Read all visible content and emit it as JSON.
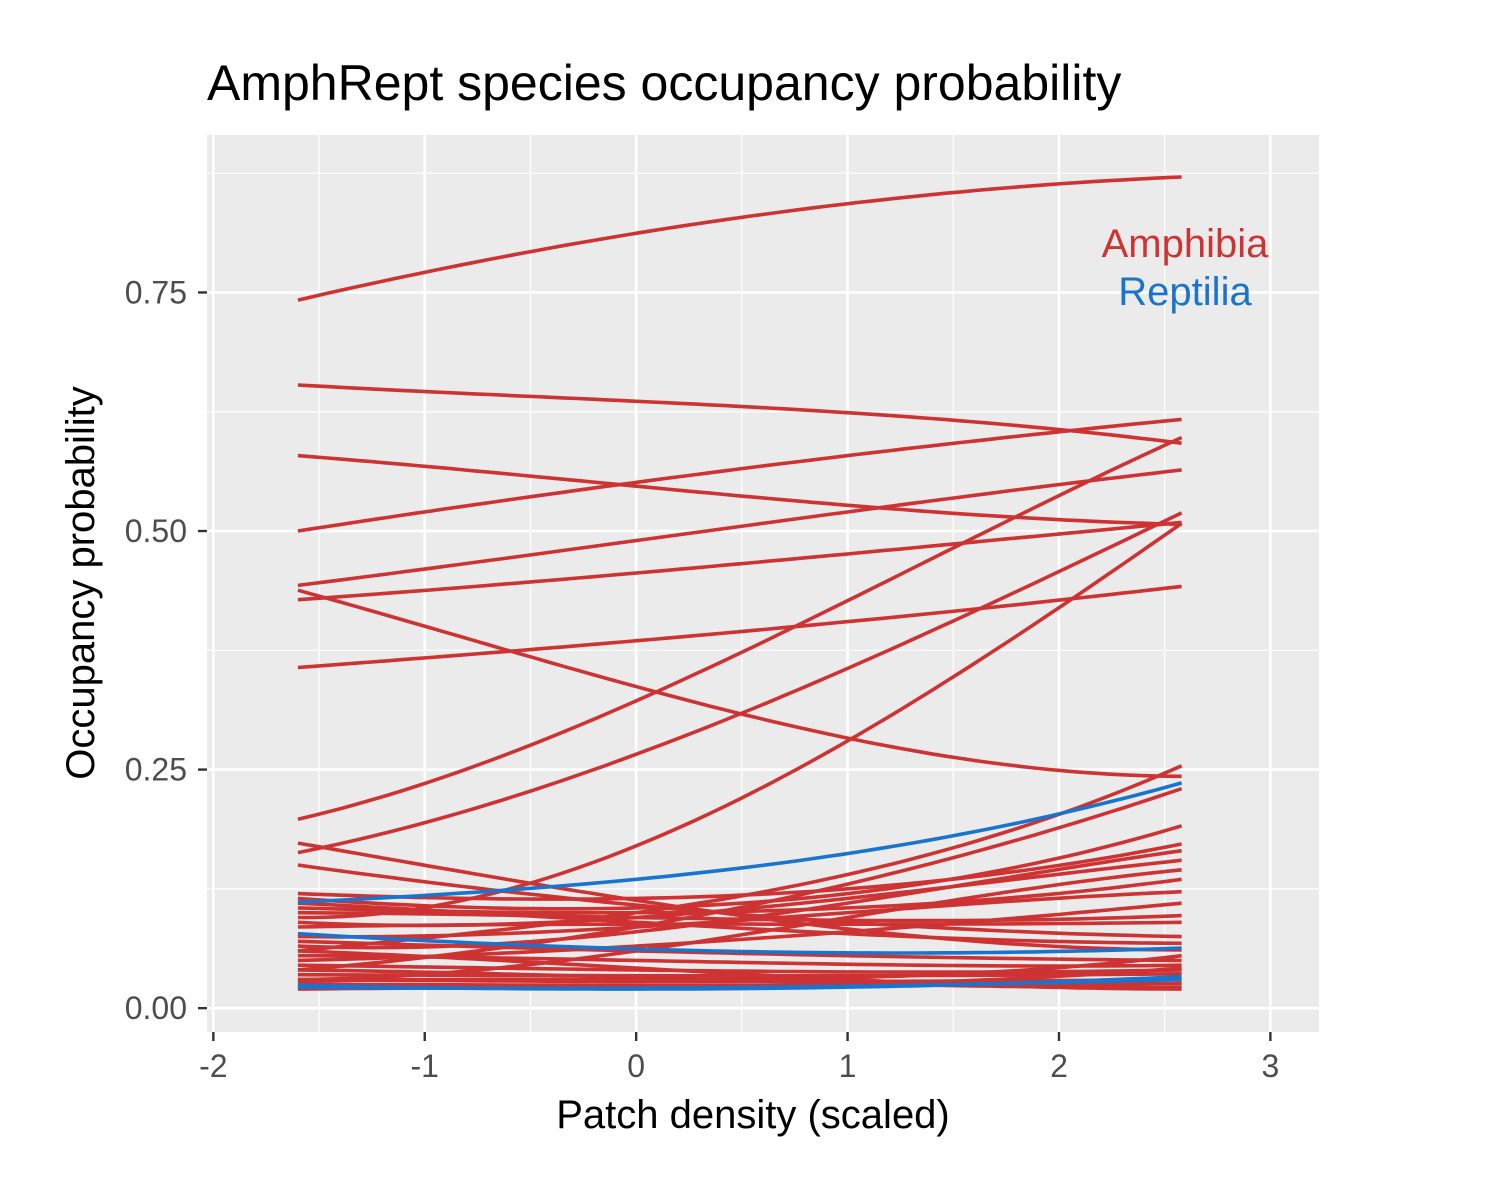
{
  "chart_data": {
    "type": "line",
    "title": "AmphRept species occupancy probability",
    "xlabel": "Patch density (scaled)",
    "ylabel": "Occupancy probability",
    "xlim": [
      -2.03,
      3.23
    ],
    "ylim": [
      -0.025,
      0.915
    ],
    "x_ticks": [
      -2,
      -1,
      0,
      1,
      2,
      3
    ],
    "x_tick_labels": [
      "-2",
      "-1",
      "0",
      "1",
      "2",
      "3"
    ],
    "y_ticks": [
      0,
      0.25,
      0.5,
      0.75
    ],
    "y_tick_labels": [
      "0.00",
      "0.25",
      "0.50",
      "0.75"
    ],
    "x_range": [
      -1.6,
      2.58
    ],
    "grid": true,
    "legend": {
      "placement": "top-right",
      "entries": [
        {
          "label": "Amphibia",
          "color": "#cd3333"
        },
        {
          "label": "Reptilia",
          "color": "#1874cd"
        }
      ]
    },
    "series": [
      {
        "group": "Amphibia",
        "x": [
          -1.6,
          0,
          1,
          2.58
        ],
        "y": [
          0.742,
          0.812,
          0.843,
          0.871
        ]
      },
      {
        "group": "Amphibia",
        "x": [
          -1.6,
          0,
          1,
          2.58
        ],
        "y": [
          0.653,
          0.636,
          0.624,
          0.592
        ]
      },
      {
        "group": "Amphibia",
        "x": [
          -1.6,
          0,
          1,
          2.58
        ],
        "y": [
          0.579,
          0.547,
          0.527,
          0.507
        ]
      },
      {
        "group": "Amphibia",
        "x": [
          -1.6,
          0,
          1,
          2.58
        ],
        "y": [
          0.5,
          0.551,
          0.579,
          0.617
        ]
      },
      {
        "group": "Amphibia",
        "x": [
          -1.6,
          0,
          1,
          2.58
        ],
        "y": [
          0.443,
          0.49,
          0.52,
          0.564
        ]
      },
      {
        "group": "Amphibia",
        "x": [
          -1.6,
          0,
          1,
          2.58
        ],
        "y": [
          0.428,
          0.456,
          0.476,
          0.509
        ]
      },
      {
        "group": "Amphibia",
        "x": [
          -1.6,
          0,
          1,
          2.58
        ],
        "y": [
          0.438,
          0.337,
          0.283,
          0.243
        ]
      },
      {
        "group": "Amphibia",
        "x": [
          -1.6,
          0,
          1,
          2.58
        ],
        "y": [
          0.357,
          0.385,
          0.405,
          0.442
        ]
      },
      {
        "group": "Amphibia",
        "x": [
          -1.6,
          0,
          1,
          2.58
        ],
        "y": [
          0.198,
          0.322,
          0.427,
          0.598
        ]
      },
      {
        "group": "Amphibia",
        "x": [
          -1.6,
          0,
          1,
          2.58
        ],
        "y": [
          0.163,
          0.266,
          0.356,
          0.519
        ]
      },
      {
        "group": "Amphibia",
        "x": [
          -1.6,
          0,
          1,
          2.58
        ],
        "y": [
          0.095,
          0.17,
          0.28,
          0.508
        ]
      },
      {
        "group": "Amphibia",
        "x": [
          -1.6,
          0,
          1,
          2.58
        ],
        "y": [
          0.173,
          0.113,
          0.083,
          0.061
        ]
      },
      {
        "group": "Amphibia",
        "x": [
          -1.6,
          0,
          1,
          2.58
        ],
        "y": [
          0.15,
          0.108,
          0.09,
          0.075
        ]
      },
      {
        "group": "Amphibia",
        "x": [
          -1.6,
          0,
          1,
          2.58
        ],
        "y": [
          0.06,
          0.1,
          0.14,
          0.254
        ]
      },
      {
        "group": "Amphibia",
        "x": [
          -1.6,
          0,
          1,
          2.58
        ],
        "y": [
          0.04,
          0.085,
          0.13,
          0.23
        ]
      },
      {
        "group": "Amphibia",
        "x": [
          -1.6,
          0,
          1,
          2.58
        ],
        "y": [
          0.115,
          0.105,
          0.12,
          0.191
        ]
      },
      {
        "group": "Amphibia",
        "x": [
          -1.6,
          0,
          1,
          2.58
        ],
        "y": [
          0.12,
          0.115,
          0.125,
          0.172
        ]
      },
      {
        "group": "Amphibia",
        "x": [
          -1.6,
          0,
          1,
          2.58
        ],
        "y": [
          0.065,
          0.08,
          0.11,
          0.165
        ]
      },
      {
        "group": "Amphibia",
        "x": [
          -1.6,
          0,
          1,
          2.58
        ],
        "y": [
          0.09,
          0.095,
          0.115,
          0.155
        ]
      },
      {
        "group": "Amphibia",
        "x": [
          -1.6,
          0,
          1,
          2.58
        ],
        "y": [
          0.03,
          0.06,
          0.095,
          0.145
        ]
      },
      {
        "group": "Amphibia",
        "x": [
          -1.6,
          0,
          1,
          2.58
        ],
        "y": [
          0.105,
          0.1,
          0.105,
          0.135
        ]
      },
      {
        "group": "Amphibia",
        "x": [
          -1.6,
          0,
          1,
          2.58
        ],
        "y": [
          0.075,
          0.085,
          0.1,
          0.122
        ]
      },
      {
        "group": "Amphibia",
        "x": [
          -1.6,
          0,
          1,
          2.58
        ],
        "y": [
          0.05,
          0.065,
          0.08,
          0.11
        ]
      },
      {
        "group": "Amphibia",
        "x": [
          -1.6,
          0,
          1,
          2.58
        ],
        "y": [
          0.1,
          0.095,
          0.092,
          0.097
        ]
      },
      {
        "group": "Amphibia",
        "x": [
          -1.6,
          0,
          1,
          2.58
        ],
        "y": [
          0.085,
          0.088,
          0.088,
          0.09
        ]
      },
      {
        "group": "Amphibia",
        "x": [
          -1.6,
          0,
          1,
          2.58
        ],
        "y": [
          0.11,
          0.09,
          0.078,
          0.068
        ]
      },
      {
        "group": "Amphibia",
        "x": [
          -1.6,
          0,
          1,
          2.58
        ],
        "y": [
          0.07,
          0.06,
          0.055,
          0.05
        ]
      },
      {
        "group": "Amphibia",
        "x": [
          -1.6,
          0,
          1,
          2.58
        ],
        "y": [
          0.055,
          0.05,
          0.046,
          0.045
        ]
      },
      {
        "group": "Amphibia",
        "x": [
          -1.6,
          0,
          1,
          2.58
        ],
        "y": [
          0.045,
          0.04,
          0.038,
          0.04
        ]
      },
      {
        "group": "Amphibia",
        "x": [
          -1.6,
          0,
          1,
          2.58
        ],
        "y": [
          0.035,
          0.034,
          0.034,
          0.036
        ]
      },
      {
        "group": "Amphibia",
        "x": [
          -1.6,
          0,
          1,
          2.58
        ],
        "y": [
          0.03,
          0.028,
          0.028,
          0.03
        ]
      },
      {
        "group": "Amphibia",
        "x": [
          -1.6,
          0,
          1,
          2.58
        ],
        "y": [
          0.025,
          0.024,
          0.024,
          0.026
        ]
      },
      {
        "group": "Amphibia",
        "x": [
          -1.6,
          0,
          1,
          2.58
        ],
        "y": [
          0.04,
          0.032,
          0.026,
          0.022
        ]
      },
      {
        "group": "Amphibia",
        "x": [
          -1.6,
          0,
          1,
          2.58
        ],
        "y": [
          0.06,
          0.042,
          0.03,
          0.02
        ]
      },
      {
        "group": "Amphibia",
        "x": [
          -1.6,
          0,
          1,
          2.58
        ],
        "y": [
          0.02,
          0.022,
          0.025,
          0.042
        ]
      },
      {
        "group": "Amphibia",
        "x": [
          -1.6,
          0,
          1,
          2.58
        ],
        "y": [
          0.028,
          0.03,
          0.032,
          0.055
        ]
      },
      {
        "group": "Reptilia",
        "x": [
          -1.6,
          0,
          1,
          2.58
        ],
        "y": [
          0.111,
          0.135,
          0.162,
          0.236
        ]
      },
      {
        "group": "Reptilia",
        "x": [
          -1.6,
          0,
          1,
          2.58
        ],
        "y": [
          0.078,
          0.062,
          0.058,
          0.063
        ]
      },
      {
        "group": "Reptilia",
        "x": [
          -1.6,
          0,
          1,
          2.58
        ],
        "y": [
          0.024,
          0.02,
          0.022,
          0.033
        ]
      },
      {
        "group": "Reptilia",
        "x": [
          -1.6,
          0,
          1,
          2.58
        ],
        "y": [
          0.022,
          0.021,
          0.023,
          0.03
        ]
      }
    ]
  }
}
